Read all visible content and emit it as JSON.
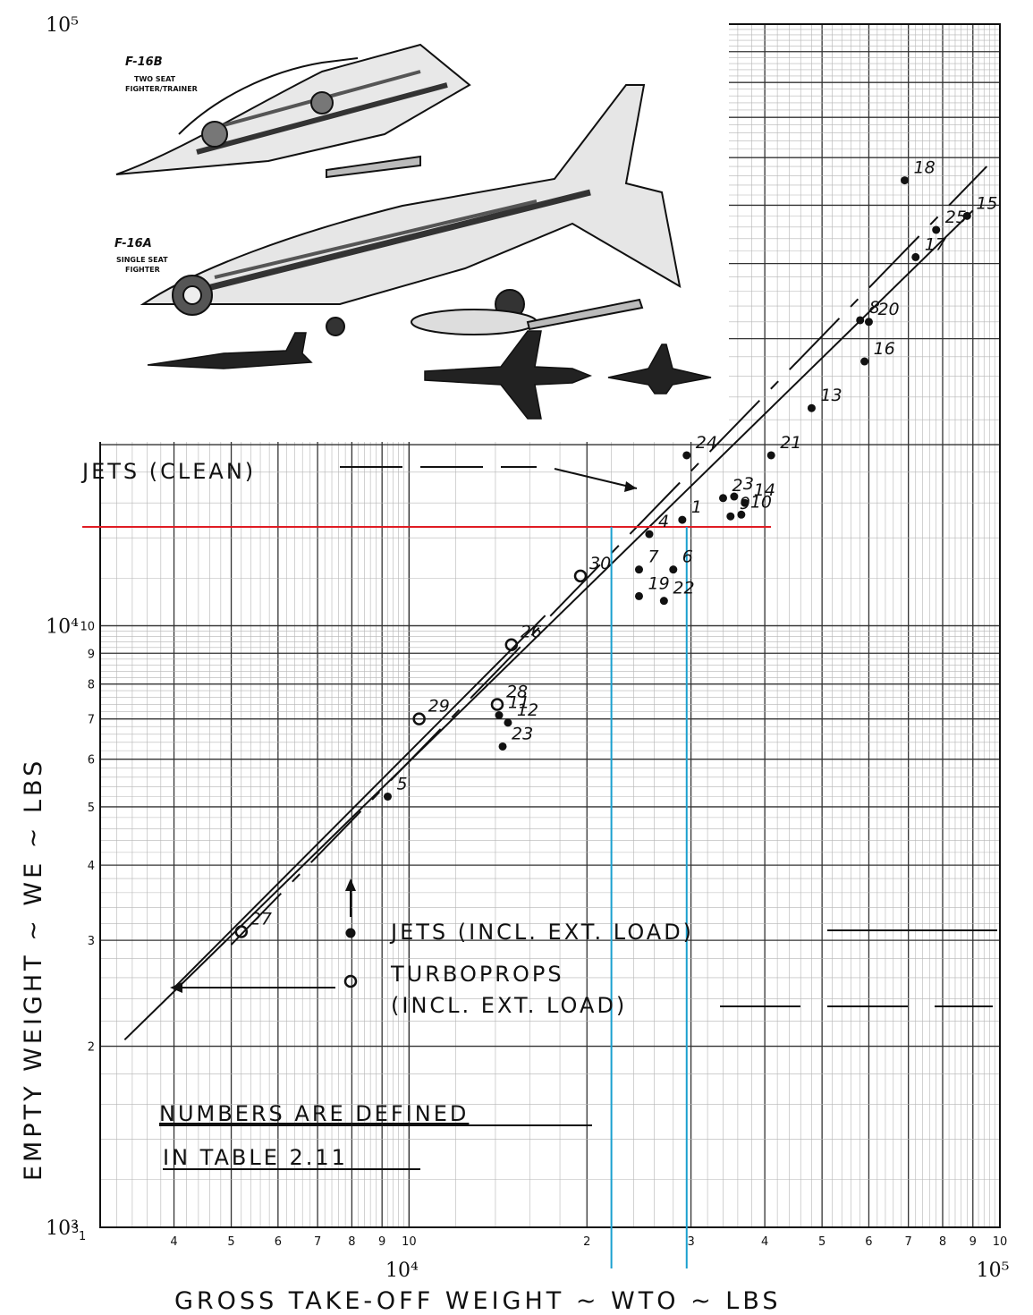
{
  "chart_data": {
    "type": "scatter",
    "title": "",
    "xlabel": "GROSS TAKE-OFF WEIGHT ~ WTO ~ LBS",
    "ylabel": "EMPTY WEIGHT ~ WE ~ LBS",
    "x_scale": "log",
    "y_scale": "log",
    "xlim": [
      3000,
      100000
    ],
    "ylim": [
      1000,
      100000
    ],
    "grid": true,
    "x_tick_labels": [
      "4",
      "5",
      "6",
      "7",
      "8",
      "9",
      "10",
      "2",
      "3",
      "4",
      "5",
      "6",
      "7",
      "8",
      "9",
      "10"
    ],
    "x_decade_labels": [
      "10⁴",
      "10⁵"
    ],
    "y_tick_labels": [
      "2",
      "3",
      "4",
      "5",
      "6",
      "7",
      "8",
      "9",
      "10"
    ],
    "y_decade_labels": [
      "10³",
      "10⁴",
      "10⁵"
    ],
    "corner_labels": [
      "3",
      "1"
    ],
    "series": [
      {
        "name": "JETS (INCL. EXT. LOAD)",
        "marker": "filled-dot",
        "points": [
          {
            "label": "1",
            "x": 29000,
            "y": 15000
          },
          {
            "label": "2",
            "x": 34000,
            "y": 16300
          },
          {
            "label": "3",
            "x": 35500,
            "y": 16400
          },
          {
            "label": "4",
            "x": 25500,
            "y": 14200
          },
          {
            "label": "5",
            "x": 9200,
            "y": 5200
          },
          {
            "label": "6",
            "x": 28000,
            "y": 12400
          },
          {
            "label": "7",
            "x": 24500,
            "y": 12400
          },
          {
            "label": "8",
            "x": 58000,
            "y": 32200
          },
          {
            "label": "9",
            "x": 35000,
            "y": 15200
          },
          {
            "label": "10",
            "x": 36500,
            "y": 15300
          },
          {
            "label": "11",
            "x": 14200,
            "y": 7100
          },
          {
            "label": "12",
            "x": 14700,
            "y": 6900
          },
          {
            "label": "13",
            "x": 48000,
            "y": 23000
          },
          {
            "label": "14",
            "x": 37000,
            "y": 16000
          },
          {
            "label": "15",
            "x": 88000,
            "y": 48000
          },
          {
            "label": "16",
            "x": 59000,
            "y": 27500
          },
          {
            "label": "17",
            "x": 72000,
            "y": 41000
          },
          {
            "label": "18",
            "x": 69000,
            "y": 55000
          },
          {
            "label": "19",
            "x": 24500,
            "y": 11200
          },
          {
            "label": "20",
            "x": 60000,
            "y": 32000
          },
          {
            "label": "21",
            "x": 41000,
            "y": 19200
          },
          {
            "label": "22",
            "x": 27000,
            "y": 11000
          },
          {
            "label": "23",
            "x": 14400,
            "y": 6300
          },
          {
            "label": "24",
            "x": 29500,
            "y": 19200
          },
          {
            "label": "25",
            "x": 78000,
            "y": 45500
          }
        ]
      },
      {
        "name": "TURBOPROPS (INCL. EXT. LOAD)",
        "marker": "open-circle",
        "points": [
          {
            "label": "26",
            "x": 14900,
            "y": 9300
          },
          {
            "label": "27",
            "x": 5200,
            "y": 3100
          },
          {
            "label": "28",
            "x": 14100,
            "y": 7400
          },
          {
            "label": "29",
            "x": 10400,
            "y": 7000
          },
          {
            "label": "30",
            "x": 19500,
            "y": 12100
          }
        ]
      }
    ],
    "trend_lines": [
      {
        "name": "JETS (CLEAN)",
        "style": "dashed",
        "x": [
          5000,
          95000
        ],
        "y": [
          2950,
          58000
        ]
      },
      {
        "name": "JETS (INCL. EXT. LOAD)",
        "style": "solid",
        "x": [
          3300,
          90000
        ],
        "y": [
          2050,
          49000
        ]
      },
      {
        "name": "TURBOPROPS (INCL. EXT. LOAD)",
        "style": "solid",
        "x": [
          4000,
          17000
        ],
        "y": [
          2500,
          10400
        ]
      }
    ],
    "reference_lines": [
      {
        "orientation": "horizontal",
        "color": "#e01c24",
        "y": 14600
      },
      {
        "orientation": "vertical",
        "color": "#1aa0cf",
        "x": 22000
      },
      {
        "orientation": "vertical",
        "color": "#1aa0cf",
        "x": 29500
      }
    ],
    "annotations": [
      "JETS (CLEAN)",
      "JETS (INCL. EXT. LOAD)",
      "TURBOPROPS",
      "(INCL. EXT. LOAD)",
      "NUMBERS ARE DEFINED",
      "IN TABLE 2.11"
    ],
    "inset": {
      "titles": [
        "F-16B",
        "F-16A"
      ],
      "subtitles": [
        "TWO SEAT",
        "FIGHTER/TRAINER",
        "SINGLE SEAT",
        "FIGHTER"
      ]
    }
  }
}
